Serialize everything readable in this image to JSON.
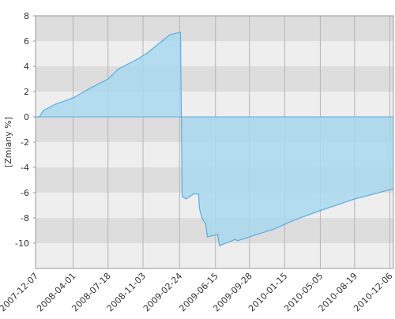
{
  "chart_data": {
    "type": "area",
    "y_label": "[Zmiany %]",
    "x": [
      "2007-12-07",
      "2007-12-19",
      "2007-12-31",
      "2008-02-06",
      "2008-04-01",
      "2008-05-26",
      "2008-07-18",
      "2008-08-19",
      "2008-10-12",
      "2008-11-13",
      "2009-01-01",
      "2009-01-25",
      "2009-02-27",
      "2009-03-04",
      "2009-03-16",
      "2009-04-09",
      "2009-04-24",
      "2009-04-26",
      "2009-05-04",
      "2009-05-16",
      "2009-05-21",
      "2009-06-22",
      "2009-06-27",
      "2009-08-15",
      "2009-08-22",
      "2009-12-11",
      "2010-02-11",
      "2010-04-26",
      "2010-08-19",
      "2010-12-16"
    ],
    "values": [
      0,
      0,
      0.5,
      1.0,
      1.5,
      2.3,
      3.0,
      3.8,
      4.5,
      5.0,
      6.0,
      6.5,
      6.7,
      -6.3,
      -6.5,
      -6.1,
      -6.1,
      -7.2,
      -8.0,
      -8.5,
      -9.5,
      -9.3,
      -10.2,
      -9.7,
      -9.8,
      -8.9,
      -8.2,
      -7.5,
      -6.5,
      -5.7
    ],
    "color": "#5aaee0",
    "fill": "#a9d8ee",
    "xlim": [
      "2007-12-07",
      "2010-12-17"
    ],
    "xticks": [
      "2007-12-07",
      "2008-04-01",
      "2008-07-18",
      "2008-11-03",
      "2009-02-24",
      "2009-06-15",
      "2009-09-28",
      "2010-01-15",
      "2010-05-05",
      "2010-08-19",
      "2010-12-06"
    ],
    "ylim": [
      -12,
      8
    ],
    "yticks": [
      -10,
      -8,
      -6,
      -4,
      -2,
      0,
      2,
      4,
      6,
      8
    ],
    "grid": true
  }
}
